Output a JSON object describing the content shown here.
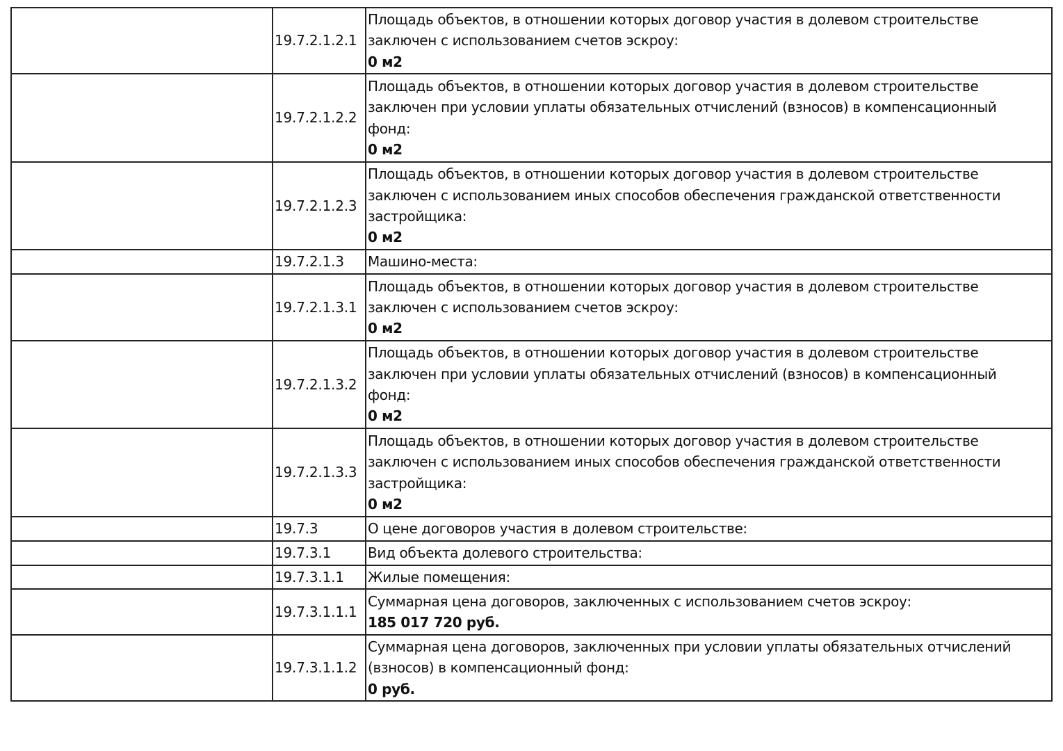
{
  "rows": [
    {
      "code": "19.7.2.1.2.1",
      "lines": [
        "Площадь объектов, в отношении которых договор участия в долевом строительстве",
        "заключен с использованием счетов эскроу:"
      ],
      "value": "0 м2"
    },
    {
      "code": "19.7.2.1.2.2",
      "lines": [
        "Площадь объектов, в отношении которых договор участия в долевом строительстве",
        "заключен при условии уплаты обязательных отчислений (взносов) в компенсационный",
        "фонд:"
      ],
      "value": "0 м2"
    },
    {
      "code": "19.7.2.1.2.3",
      "lines": [
        "Площадь объектов, в отношении которых договор участия в долевом строительстве",
        "заключен с использованием иных способов обеспечения гражданской ответственности",
        "застройщика:"
      ],
      "value": "0 м2"
    },
    {
      "code": "19.7.2.1.3",
      "lines": [
        "Машино-места:"
      ],
      "value": ""
    },
    {
      "code": "19.7.2.1.3.1",
      "lines": [
        "Площадь объектов, в отношении которых договор участия в долевом строительстве",
        "заключен с использованием счетов эскроу:"
      ],
      "value": "0 м2"
    },
    {
      "code": "19.7.2.1.3.2",
      "lines": [
        "Площадь объектов, в отношении которых договор участия в долевом строительстве",
        "заключен при условии уплаты обязательных отчислений (взносов) в компенсационный",
        "фонд:"
      ],
      "value": "0 м2"
    },
    {
      "code": "19.7.2.1.3.3",
      "lines": [
        "Площадь объектов, в отношении которых договор участия в долевом строительстве",
        "заключен с использованием иных способов обеспечения гражданской ответственности",
        "застройщика:"
      ],
      "value": "0 м2"
    },
    {
      "code": "19.7.3",
      "lines": [
        "О цене договоров участия в долевом строительстве:"
      ],
      "value": ""
    },
    {
      "code": "19.7.3.1",
      "lines": [
        "Вид объекта долевого строительства:"
      ],
      "value": ""
    },
    {
      "code": "19.7.3.1.1",
      "lines": [
        "Жилые помещения:"
      ],
      "value": ""
    },
    {
      "code": "19.7.3.1.1.1",
      "lines": [
        "Суммарная цена договоров, заключенных с использованием счетов эскроу:"
      ],
      "value": "185 017 720 руб."
    },
    {
      "code": "19.7.3.1.1.2",
      "lines": [
        "Суммарная цена договоров, заключенных при условии уплаты обязательных отчислений",
        "(взносов) в компенсационный фонд:"
      ],
      "value": "0 руб."
    }
  ]
}
